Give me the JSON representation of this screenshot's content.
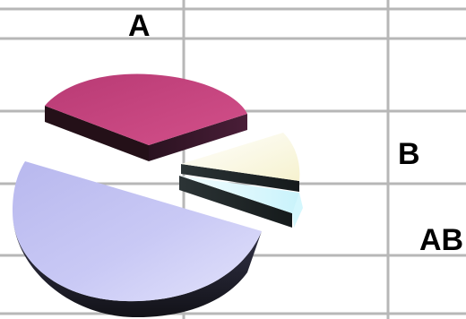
{
  "chart_data": {
    "type": "pie",
    "style": "3d-exploded",
    "grid": true,
    "labels": [
      "A",
      "B",
      "AB",
      ""
    ],
    "values": [
      28,
      6,
      2,
      64
    ],
    "colors": {
      "A": "#c6457f",
      "B": "#fffce8",
      "AB": "#e6fbff",
      "blank": "#c8c8f4"
    }
  }
}
